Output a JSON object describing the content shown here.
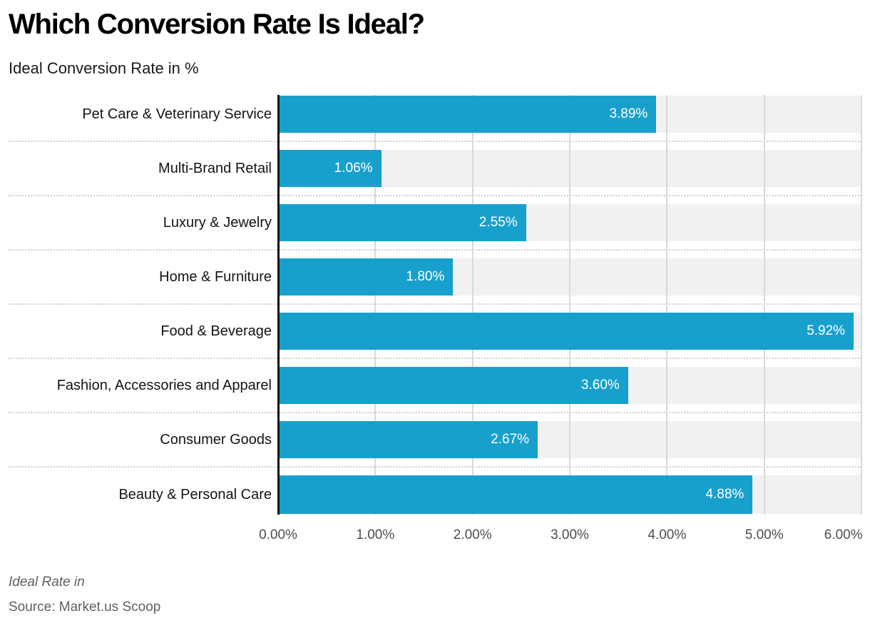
{
  "title": "Which Conversion Rate Is Ideal?",
  "subtitle": "Ideal Conversion Rate in %",
  "footer": {
    "note": "Ideal Rate in",
    "source": "Source: Market.us Scoop"
  },
  "colors": {
    "bar": "#18a0cd",
    "track": "#f1f1f1",
    "grid": "#d9d9d9",
    "separator": "#cfcfcf",
    "axis": "#111111",
    "value_label": "#ffffff"
  },
  "chart_data": {
    "type": "bar",
    "orientation": "horizontal",
    "title": "Which Conversion Rate Is Ideal?",
    "xlabel": "Ideal Conversion Rate in %",
    "categories": [
      "Pet Care & Veterinary Service",
      "Multi-Brand Retail",
      "Luxury & Jewelry",
      "Home & Furniture",
      "Food & Beverage",
      "Fashion, Accessories and Apparel",
      "Consumer Goods",
      "Beauty & Personal Care"
    ],
    "values": [
      3.89,
      1.06,
      2.55,
      1.8,
      5.92,
      3.6,
      2.67,
      4.88
    ],
    "value_labels": [
      "3.89%",
      "1.06%",
      "2.55%",
      "1.80%",
      "5.92%",
      "3.60%",
      "2.67%",
      "4.88%"
    ],
    "xlim": [
      0,
      6
    ],
    "x_ticks": [
      "0.00%",
      "1.00%",
      "2.00%",
      "3.00%",
      "4.00%",
      "5.00%",
      "6.00%"
    ],
    "grid": true,
    "legend": false
  }
}
